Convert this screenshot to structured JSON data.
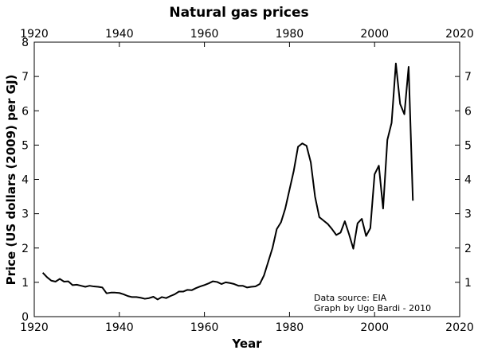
{
  "chart_data": {
    "type": "line",
    "title": "Natural gas prices",
    "xlabel": "Year",
    "ylabel": "Price (US dollars (2009) per GJ)",
    "xlim": [
      1920,
      2020
    ],
    "ylim": [
      0,
      8
    ],
    "x_ticks": [
      1920,
      1940,
      1960,
      1980,
      2000,
      2020
    ],
    "y_ticks": [
      0,
      1,
      2,
      3,
      4,
      5,
      6,
      7,
      8
    ],
    "x_ticks_top": true,
    "y_ticks_right": true,
    "grid": false,
    "annotations": [
      "Data source: EIA",
      "Graph by Ugo Bardi - 2010"
    ],
    "line_color": "#000000",
    "series": [
      {
        "x": [
          1922,
          1923,
          1924,
          1925,
          1926,
          1927,
          1928,
          1929,
          1930,
          1931,
          1932,
          1933,
          1934,
          1935,
          1936,
          1937,
          1938,
          1939,
          1940,
          1941,
          1942,
          1943,
          1944,
          1945,
          1946,
          1947,
          1948,
          1949,
          1950,
          1951,
          1952,
          1953,
          1954,
          1955,
          1956,
          1957,
          1958,
          1959,
          1960,
          1961,
          1962,
          1963,
          1964,
          1965,
          1966,
          1967,
          1968,
          1969,
          1970,
          1971,
          1972,
          1973,
          1974,
          1975,
          1976,
          1977,
          1978,
          1979,
          1980,
          1981,
          1982,
          1983,
          1984,
          1985,
          1986,
          1987,
          1988,
          1989,
          1990,
          1991,
          1992,
          1993,
          1994,
          1995,
          1996,
          1997,
          1998,
          1999,
          2000,
          2001,
          2002,
          2003,
          2004,
          2005,
          2006,
          2007,
          2008,
          2009
        ],
        "values": [
          1.28,
          1.15,
          1.05,
          1.02,
          1.1,
          1.02,
          1.03,
          0.92,
          0.93,
          0.9,
          0.87,
          0.9,
          0.88,
          0.87,
          0.85,
          0.68,
          0.7,
          0.7,
          0.69,
          0.65,
          0.6,
          0.57,
          0.57,
          0.55,
          0.52,
          0.54,
          0.58,
          0.5,
          0.57,
          0.54,
          0.6,
          0.65,
          0.73,
          0.73,
          0.78,
          0.77,
          0.83,
          0.88,
          0.92,
          0.97,
          1.03,
          1.01,
          0.95,
          1.0,
          0.98,
          0.95,
          0.9,
          0.9,
          0.85,
          0.87,
          0.88,
          0.95,
          1.2,
          1.6,
          2.0,
          2.55,
          2.75,
          3.15,
          3.7,
          4.25,
          4.95,
          5.05,
          4.98,
          4.5,
          3.5,
          2.9,
          2.8,
          2.7,
          2.55,
          2.38,
          2.45,
          2.78,
          2.4,
          1.98,
          2.72,
          2.85,
          2.35,
          2.58,
          4.15,
          4.4,
          3.15,
          5.15,
          5.65,
          7.38,
          6.2,
          5.9,
          7.28,
          3.38
        ]
      }
    ]
  }
}
